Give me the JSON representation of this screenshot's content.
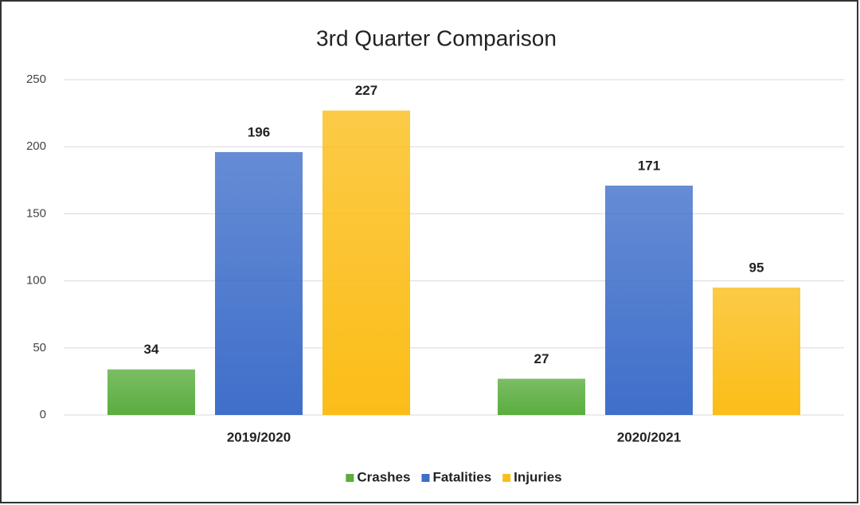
{
  "chart_data": {
    "type": "bar",
    "title": "3rd Quarter Comparison",
    "categories": [
      "2019/2020",
      "2020/2021"
    ],
    "series": [
      {
        "name": "Crashes",
        "color": "#5aad3f",
        "values": [
          34,
          27
        ]
      },
      {
        "name": "Fatalities",
        "color": "#3f6fca",
        "values": [
          196,
          171
        ]
      },
      {
        "name": "Injuries",
        "color": "#fbbd18",
        "values": [
          227,
          95
        ]
      }
    ],
    "ylim": [
      0,
      250
    ],
    "yticks": [
      0,
      50,
      100,
      150,
      200,
      250
    ],
    "grid": true,
    "legend": "bottom"
  }
}
